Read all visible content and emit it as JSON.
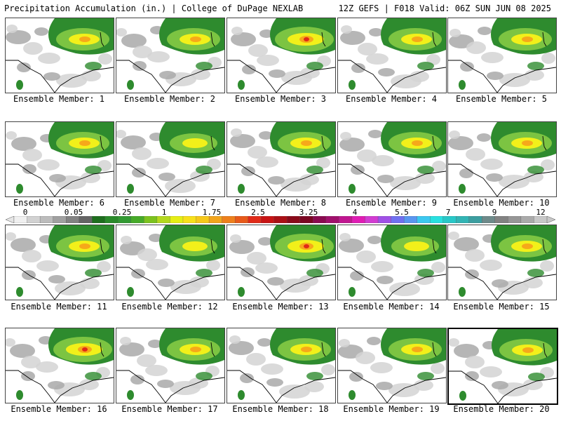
{
  "header": {
    "title": "Precipitation Accumulation (in.) | College of DuPage NEXLAB",
    "run_info": "12Z GEFS | F018 Valid: 06Z SUN JUN 08 2025"
  },
  "colorbar": {
    "tick_labels": [
      "0",
      "0.05",
      "0.25",
      "1",
      "1.75",
      "2.5",
      "3.25",
      "4",
      "5.5",
      "7",
      "9",
      "12"
    ],
    "colors": [
      "#f0f0f0",
      "#d2d2d2",
      "#bcbcbc",
      "#a0a0a0",
      "#828282",
      "#646464",
      "#1e6e1e",
      "#2a8a2a",
      "#329a32",
      "#46aa28",
      "#7cc21e",
      "#b4d81e",
      "#e6ee14",
      "#f8e01a",
      "#f6c81a",
      "#f2a41c",
      "#ee801c",
      "#e85a1a",
      "#e02a18",
      "#c81414",
      "#aa1016",
      "#8a0a1a",
      "#7a0622",
      "#8a0a50",
      "#a0106c",
      "#c01690",
      "#e01cb4",
      "#d23cd2",
      "#a050e6",
      "#7070f0",
      "#5a96f0",
      "#3cc8f0",
      "#28e0e0",
      "#28c8c8",
      "#32b4b4",
      "#3c9ea0",
      "#6e8a8a",
      "#828282",
      "#969696",
      "#aaaaaa",
      "#c8c8c8"
    ]
  },
  "legend_colors": {
    "light_precip": "#d3d3d3",
    "mid_precip": "#a9a9a9",
    "green": "#2e8b2e",
    "light_green": "#7cc442",
    "yellow": "#f2f01a",
    "orange": "#f6a81a",
    "red": "#e02a18",
    "boundary": "#000000"
  },
  "members": [
    {
      "label": "Ensemble Member: 1"
    },
    {
      "label": "Ensemble Member: 2"
    },
    {
      "label": "Ensemble Member: 3"
    },
    {
      "label": "Ensemble Member: 4"
    },
    {
      "label": "Ensemble Member: 5"
    },
    {
      "label": "Ensemble Member: 6"
    },
    {
      "label": "Ensemble Member: 7"
    },
    {
      "label": "Ensemble Member: 8"
    },
    {
      "label": "Ensemble Member: 9"
    },
    {
      "label": "Ensemble Member: 10"
    },
    {
      "label": "Ensemble Member: 11"
    },
    {
      "label": "Ensemble Member: 12"
    },
    {
      "label": "Ensemble Member: 13"
    },
    {
      "label": "Ensemble Member: 14"
    },
    {
      "label": "Ensemble Member: 15"
    },
    {
      "label": "Ensemble Member: 16"
    },
    {
      "label": "Ensemble Member: 17"
    },
    {
      "label": "Ensemble Member: 18"
    },
    {
      "label": "Ensemble Member: 19"
    },
    {
      "label": "Ensemble Member: 20"
    }
  ]
}
